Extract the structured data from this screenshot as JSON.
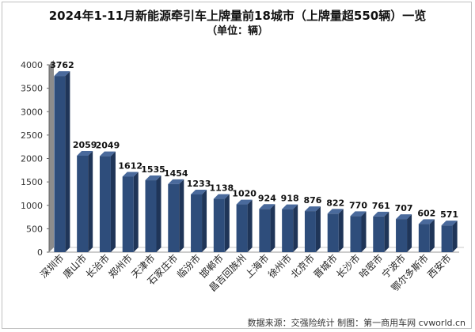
{
  "chart_data": {
    "type": "bar",
    "title": "2024年1-11月新能源牵引车上牌量前18城市（上牌量超550辆）一览",
    "subtitle": "（单位：辆）",
    "xlabel": "",
    "ylabel": "",
    "ylim": [
      0,
      4000
    ],
    "yticks": [
      0,
      500,
      1000,
      1500,
      2000,
      2500,
      3000,
      3500,
      4000
    ],
    "categories": [
      "深圳市",
      "唐山市",
      "长治市",
      "郑州市",
      "天津市",
      "石家庄市",
      "临汾市",
      "邯郸市",
      "昌吉回族州",
      "上海市",
      "徐州市",
      "北京市",
      "晋城市",
      "长沙市",
      "哈密市",
      "宁波市",
      "鄂尔多斯市",
      "西安市"
    ],
    "values": [
      3762,
      2059,
      2049,
      1612,
      1535,
      1454,
      1233,
      1138,
      1020,
      924,
      918,
      876,
      822,
      770,
      761,
      707,
      602,
      571
    ],
    "grid": false,
    "colors": {
      "bar_front": "#2e4d7b",
      "bar_side": "#1f3558",
      "bar_top": "#4a6a9c",
      "axis_wall": "#8c8c8c"
    }
  },
  "footer": {
    "source": "数据来源：交强险统计 制图：第一商用车网 cvworld.cn"
  }
}
